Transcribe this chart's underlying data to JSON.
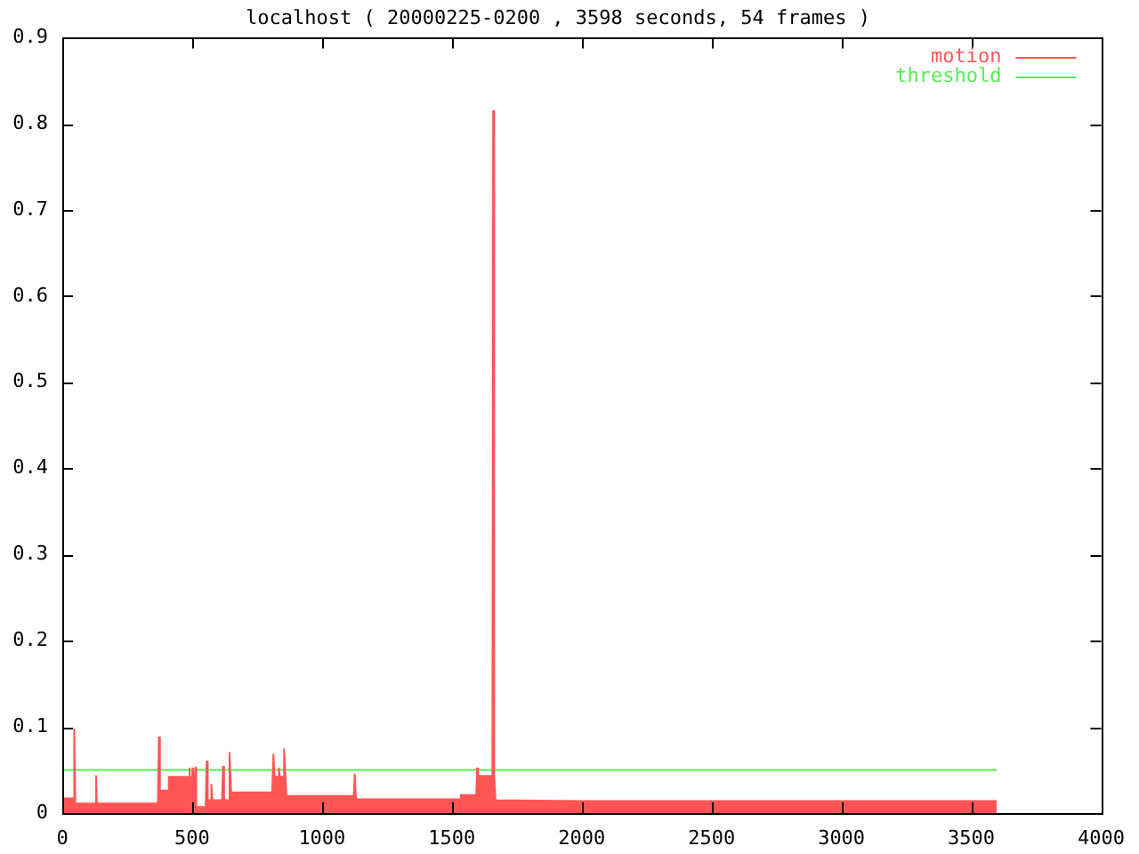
{
  "chart_data": {
    "type": "area",
    "title": "localhost ( 20000225-0200 , 3598 seconds, 54 frames )",
    "series": [
      {
        "name": "motion",
        "type": "area",
        "color": "#ff5555",
        "x": [
          0,
          44,
          46,
          50,
          127,
          130,
          133,
          368,
          372,
          376,
          405,
          410,
          487,
          489,
          492,
          500,
          502,
          505,
          511,
          514,
          516,
          552,
          556,
          560,
          571,
          574,
          578,
          615,
          619,
          623,
          640,
          644,
          650,
          808,
          813,
          817,
          831,
          834,
          838,
          850,
          854,
          863,
          1122,
          1126,
          1131,
          1530,
          1534,
          1594,
          1597,
          1601,
          1652,
          1656,
          1659,
          1663,
          1668,
          2000,
          2500,
          3000,
          3598
        ],
        "values": [
          0.017,
          0.017,
          0.097,
          0.011,
          0.011,
          0.043,
          0.011,
          0.011,
          0.088,
          0.026,
          0.026,
          0.042,
          0.042,
          0.052,
          0.042,
          0.042,
          0.052,
          0.042,
          0.042,
          0.053,
          0.007,
          0.007,
          0.06,
          0.015,
          0.015,
          0.033,
          0.015,
          0.015,
          0.054,
          0.015,
          0.015,
          0.07,
          0.024,
          0.024,
          0.068,
          0.042,
          0.042,
          0.052,
          0.042,
          0.042,
          0.074,
          0.02,
          0.02,
          0.045,
          0.016,
          0.016,
          0.021,
          0.021,
          0.052,
          0.043,
          0.043,
          0.053,
          0.815,
          0.043,
          0.015,
          0.014,
          0.014,
          0.014,
          0.014
        ]
      },
      {
        "name": "threshold",
        "type": "line",
        "color": "#55ee55",
        "x": [
          0,
          3598
        ],
        "values": [
          0.05,
          0.05
        ]
      }
    ],
    "xlim": [
      0,
      4000
    ],
    "xticks": [
      0,
      500,
      1000,
      1500,
      2000,
      2500,
      3000,
      3500,
      4000
    ],
    "ylim": [
      0,
      0.9
    ],
    "yticks": [
      0,
      0.1,
      0.2,
      0.3,
      0.4,
      0.5,
      0.6,
      0.7,
      0.8,
      0.9
    ],
    "legend": "top right",
    "marker": "none"
  }
}
